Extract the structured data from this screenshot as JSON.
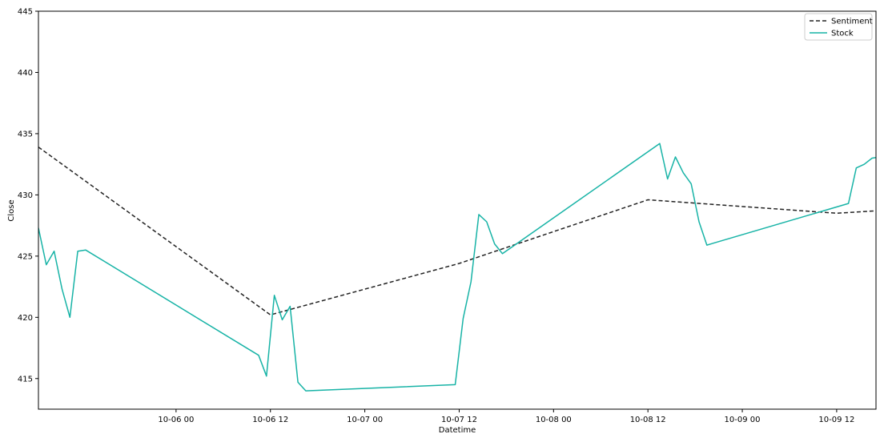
{
  "chart_data": {
    "type": "line",
    "xlabel": "Datetime",
    "ylabel": "Close",
    "xlim": [
      "2023-10-05 06:30",
      "2023-10-09 17:00"
    ],
    "ylim": [
      412.5,
      445
    ],
    "y_ticks": [
      415,
      420,
      425,
      430,
      435,
      440,
      445
    ],
    "y_tick_labels": [
      "415",
      "420",
      "425",
      "430",
      "435",
      "440",
      "445"
    ],
    "x_ticks": [
      "2023-10-06 00:00",
      "2023-10-06 12:00",
      "2023-10-07 00:00",
      "2023-10-07 12:00",
      "2023-10-08 00:00",
      "2023-10-08 12:00",
      "2023-10-09 00:00",
      "2023-10-09 12:00"
    ],
    "x_tick_labels": [
      "10-06 00",
      "10-06 12",
      "10-07 00",
      "10-07 12",
      "10-08 00",
      "10-08 12",
      "10-09 00",
      "10-09 12"
    ],
    "grid": false,
    "legend_position": "top-right",
    "series": [
      {
        "name": "Sentiment",
        "color": "#222222",
        "style": "dashed",
        "points": [
          [
            "2023-10-05 06:30",
            433.9
          ],
          [
            "2023-10-06 12:00",
            420.2
          ],
          [
            "2023-10-07 12:00",
            424.4
          ],
          [
            "2023-10-08 12:00",
            429.6
          ],
          [
            "2023-10-09 12:00",
            428.5
          ],
          [
            "2023-10-09 17:00",
            428.7
          ]
        ]
      },
      {
        "name": "Stock",
        "color": "#17b3a6",
        "style": "solid",
        "points": [
          [
            "2023-10-05 06:30",
            427.3
          ],
          [
            "2023-10-05 07:30",
            424.3
          ],
          [
            "2023-10-05 08:30",
            425.4
          ],
          [
            "2023-10-05 09:30",
            422.3
          ],
          [
            "2023-10-05 10:30",
            420.0
          ],
          [
            "2023-10-05 11:30",
            425.4
          ],
          [
            "2023-10-05 12:30",
            425.5
          ],
          [
            "2023-10-06 10:30",
            416.9
          ],
          [
            "2023-10-06 11:30",
            415.2
          ],
          [
            "2023-10-06 12:30",
            421.8
          ],
          [
            "2023-10-06 13:30",
            419.8
          ],
          [
            "2023-10-06 14:30",
            420.9
          ],
          [
            "2023-10-06 15:30",
            414.7
          ],
          [
            "2023-10-06 16:30",
            414.0
          ],
          [
            "2023-10-07 11:30",
            414.5
          ],
          [
            "2023-10-07 12:30",
            419.9
          ],
          [
            "2023-10-07 13:30",
            422.9
          ],
          [
            "2023-10-07 14:30",
            428.4
          ],
          [
            "2023-10-07 15:30",
            427.8
          ],
          [
            "2023-10-07 16:30",
            426.0
          ],
          [
            "2023-10-07 17:30",
            425.2
          ],
          [
            "2023-10-08 13:30",
            434.2
          ],
          [
            "2023-10-08 14:30",
            431.3
          ],
          [
            "2023-10-08 15:30",
            433.1
          ],
          [
            "2023-10-08 16:30",
            431.8
          ],
          [
            "2023-10-08 17:30",
            430.9
          ],
          [
            "2023-10-08 18:30",
            427.8
          ],
          [
            "2023-10-08 19:30",
            425.9
          ],
          [
            "2023-10-09 13:30",
            429.3
          ],
          [
            "2023-10-09 14:30",
            432.2
          ],
          [
            "2023-10-09 15:30",
            432.5
          ],
          [
            "2023-10-09 16:30",
            433.0
          ],
          [
            "2023-10-09 17:30",
            433.1
          ]
        ]
      }
    ]
  }
}
